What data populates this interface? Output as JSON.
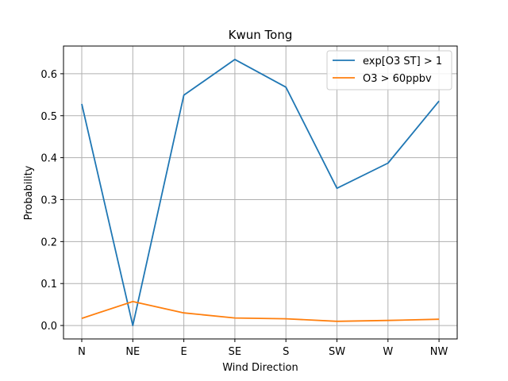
{
  "chart_data": {
    "type": "line",
    "title": "Kwun Tong",
    "xlabel": "Wind Direction",
    "ylabel": "Probability",
    "categories": [
      "N",
      "NE",
      "E",
      "SE",
      "S",
      "SW",
      "W",
      "NW"
    ],
    "ylim": [
      -0.032,
      0.666
    ],
    "yticks": [
      "0.0",
      "0.1",
      "0.2",
      "0.3",
      "0.4",
      "0.5",
      "0.6"
    ],
    "grid": true,
    "legend_position": "top-right",
    "series": [
      {
        "name": "exp[O3 ST] > 1",
        "color": "#1f77b4",
        "values": [
          0.528,
          0.0,
          0.549,
          0.634,
          0.568,
          0.327,
          0.387,
          0.535
        ]
      },
      {
        "name": "O3 > 60ppbv",
        "color": "#ff7f0e",
        "values": [
          0.017,
          0.057,
          0.03,
          0.018,
          0.016,
          0.01,
          0.012,
          0.015
        ]
      }
    ]
  }
}
